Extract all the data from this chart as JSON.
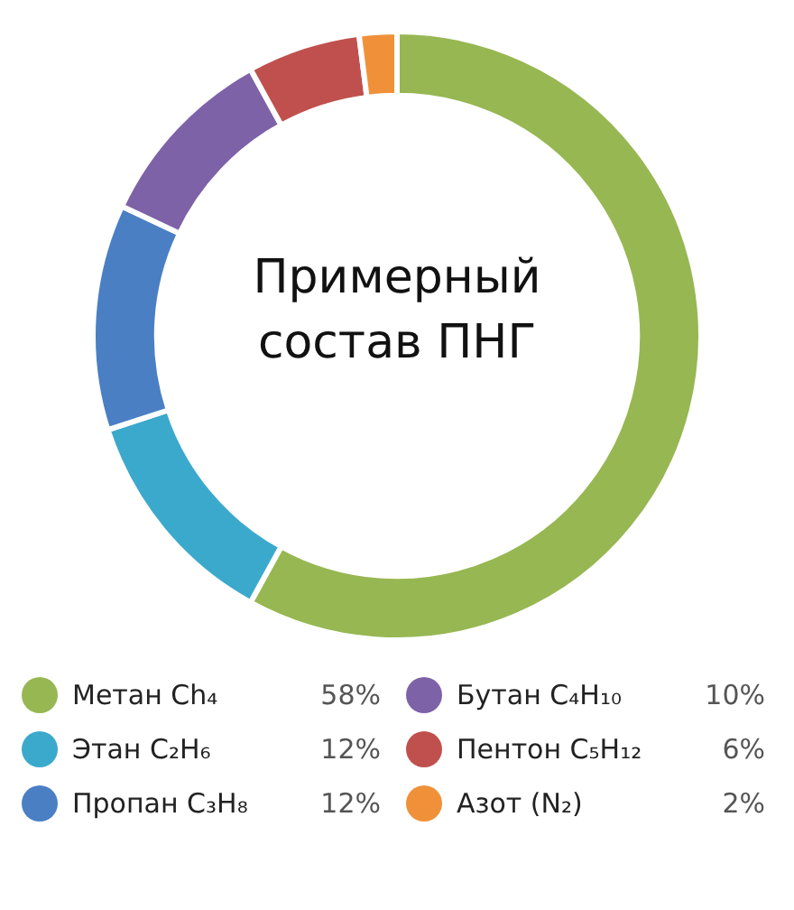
{
  "chart_data": {
    "type": "donut",
    "title": "Примерный состав ПНГ",
    "categories": [
      "Метан Ch₄",
      "Этан C₂H₆",
      "Пропан C₃H₈",
      "Бутан C₄H₁₀",
      "Пентон C₅H₁₂",
      "Азот (N₂)"
    ],
    "values": [
      58,
      12,
      12,
      10,
      6,
      2
    ],
    "value_labels": [
      "58%",
      "12%",
      "12%",
      "10%",
      "6%",
      "2%"
    ],
    "colors": [
      "#97b752",
      "#3ba9cc",
      "#4a7fc4",
      "#7e62a8",
      "#c0504d",
      "#f0913a"
    ],
    "legend": "bottom"
  }
}
